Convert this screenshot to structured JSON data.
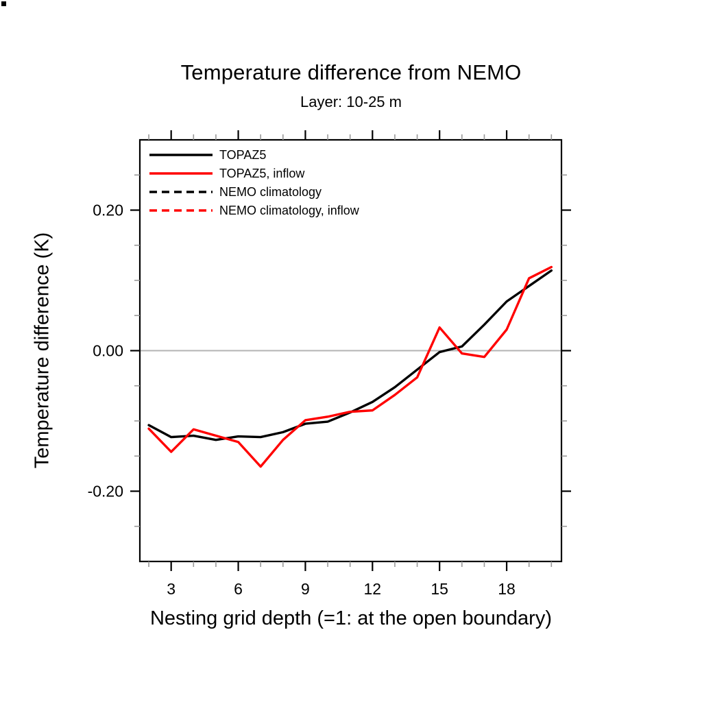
{
  "title": "Temperature difference from NEMO",
  "subtitle": "Layer: 10-25 m",
  "chart_data": {
    "type": "line",
    "x": [
      2,
      3,
      4,
      5,
      6,
      7,
      8,
      9,
      10,
      11,
      12,
      13,
      14,
      15,
      16,
      17,
      18,
      19,
      20
    ],
    "series": [
      {
        "name": "TOPAZ5",
        "color": "#000000",
        "style": "solid",
        "visible": true,
        "values": [
          -0.106,
          -0.123,
          -0.121,
          -0.127,
          -0.122,
          -0.123,
          -0.116,
          -0.104,
          -0.101,
          -0.088,
          -0.073,
          -0.052,
          -0.027,
          -0.002,
          0.006,
          0.037,
          0.07,
          0.092,
          0.114
        ]
      },
      {
        "name": "TOPAZ5, inflow",
        "color": "#ff0000",
        "style": "solid",
        "visible": true,
        "values": [
          -0.111,
          -0.144,
          -0.112,
          -0.121,
          -0.13,
          -0.165,
          -0.127,
          -0.099,
          -0.094,
          -0.087,
          -0.085,
          -0.063,
          -0.038,
          0.033,
          -0.004,
          -0.009,
          0.03,
          0.103,
          0.119
        ]
      },
      {
        "name": "NEMO climatology",
        "color": "#000000",
        "style": "dashed",
        "visible": false,
        "values": []
      },
      {
        "name": "NEMO climatology, inflow",
        "color": "#ff0000",
        "style": "dashed",
        "visible": false,
        "values": []
      }
    ],
    "xlabel": "Nesting grid depth (=1: at the open boundary)",
    "ylabel": "Temperature difference (K)",
    "xlim": [
      1.6,
      20.45
    ],
    "ylim": [
      -0.3,
      0.3
    ],
    "x_major_ticks": [
      3,
      6,
      9,
      12,
      15,
      18
    ],
    "x_minor_min": 2,
    "x_minor_max": 20,
    "x_minor_step": 1,
    "y_major_ticks": [
      -0.2,
      0.0,
      0.2
    ],
    "y_tick_labels": [
      "-0.20",
      "0.00",
      "0.20"
    ],
    "y_minor_min": -0.25,
    "y_minor_max": 0.25,
    "y_minor_step": 0.05,
    "zero_line_y": 0,
    "zero_line_color": "#b3b3b3",
    "axis_color": "#000000",
    "minor_tick_color": "#999999",
    "legend_position": "top-left",
    "grid": false
  }
}
